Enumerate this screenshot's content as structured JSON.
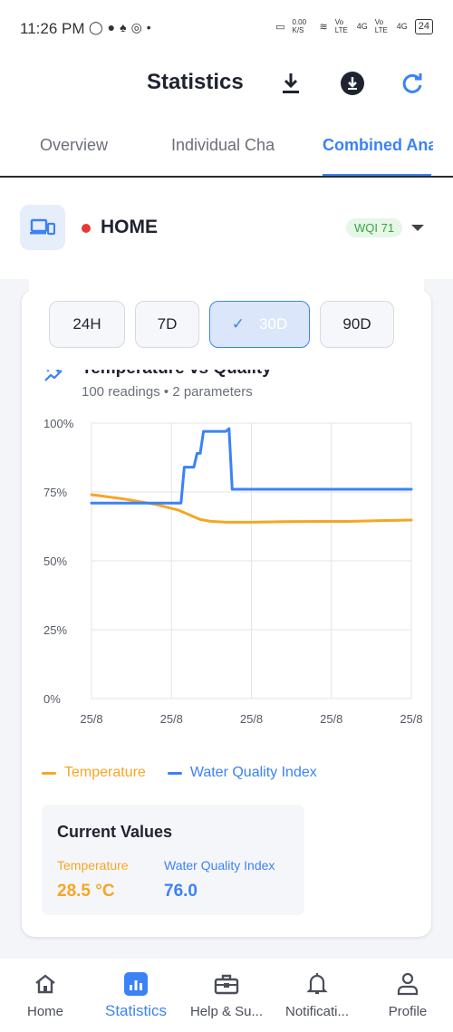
{
  "status_bar": {
    "time": "11:26 PM",
    "left_icons": [
      "whatsapp-icon",
      "facebook-icon",
      "bell-icon",
      "instagram-icon",
      "dot-icon"
    ],
    "net_speed": "0.00 K/S",
    "signal_labels": [
      "Vo LTE",
      "4G",
      "Vo LTE",
      "4G"
    ],
    "battery": "24"
  },
  "app_bar": {
    "title": "Statistics",
    "icons": [
      "download-icon",
      "download-circle-icon",
      "refresh-icon"
    ]
  },
  "tabs": [
    {
      "label": "Overview",
      "active": false
    },
    {
      "label": "Individual Cha",
      "active": false
    },
    {
      "label": "Combined Ana",
      "active": true
    }
  ],
  "device": {
    "name": "HOME",
    "status_color": "#e53935",
    "badge": "WQI 71"
  },
  "time_ranges": [
    {
      "label": "24H",
      "selected": false
    },
    {
      "label": "7D",
      "selected": false
    },
    {
      "label": "30D",
      "selected": true
    },
    {
      "label": "90D",
      "selected": false
    }
  ],
  "chart_card": {
    "title": "Temperature vs Quality",
    "subtitle": "100 readings • 2 parameters"
  },
  "chart_data": {
    "type": "line",
    "ylim": [
      0,
      100
    ],
    "y_ticks": [
      "0%",
      "25%",
      "50%",
      "75%",
      "100%"
    ],
    "x_ticks": [
      "25/8",
      "25/8",
      "25/8",
      "25/8",
      "25/8"
    ],
    "grid": true,
    "legend_position": "bottom",
    "x": [
      0,
      10,
      20,
      27,
      28,
      29,
      32,
      33,
      34,
      35,
      36,
      37,
      42,
      43,
      44,
      45,
      46,
      50,
      60,
      70,
      80,
      90,
      100
    ],
    "series": [
      {
        "name": "Temperature",
        "color": "#f5a623",
        "values": [
          74,
          72.5,
          70.5,
          68.5,
          68,
          67.5,
          66,
          65.5,
          65,
          64.8,
          64.6,
          64.4,
          64,
          64,
          64,
          64,
          64,
          64,
          64.2,
          64.3,
          64.3,
          64.6,
          64.8
        ]
      },
      {
        "name": "Water Quality Index",
        "color": "#3b82f6",
        "values": [
          71,
          71,
          71,
          71,
          71,
          84,
          84,
          89,
          89,
          97,
          97,
          97,
          97,
          98,
          76,
          76,
          76,
          76,
          76,
          76,
          76,
          76,
          76
        ]
      }
    ]
  },
  "current_values": {
    "heading": "Current Values",
    "items": [
      {
        "label": "Temperature",
        "value": "28.5 °C",
        "color": "#f5a623"
      },
      {
        "label": "Water Quality Index",
        "value": "76.0",
        "color": "#3b82f6"
      }
    ]
  },
  "bottom_nav": [
    {
      "label": "Home",
      "icon": "home-icon",
      "active": false
    },
    {
      "label": "Statistics",
      "icon": "bar-chart-icon",
      "active": true
    },
    {
      "label": "Help & Su...",
      "icon": "toolbox-icon",
      "active": false
    },
    {
      "label": "Notificati...",
      "icon": "bell-icon",
      "active": false
    },
    {
      "label": "Profile",
      "icon": "person-icon",
      "active": false
    }
  ]
}
